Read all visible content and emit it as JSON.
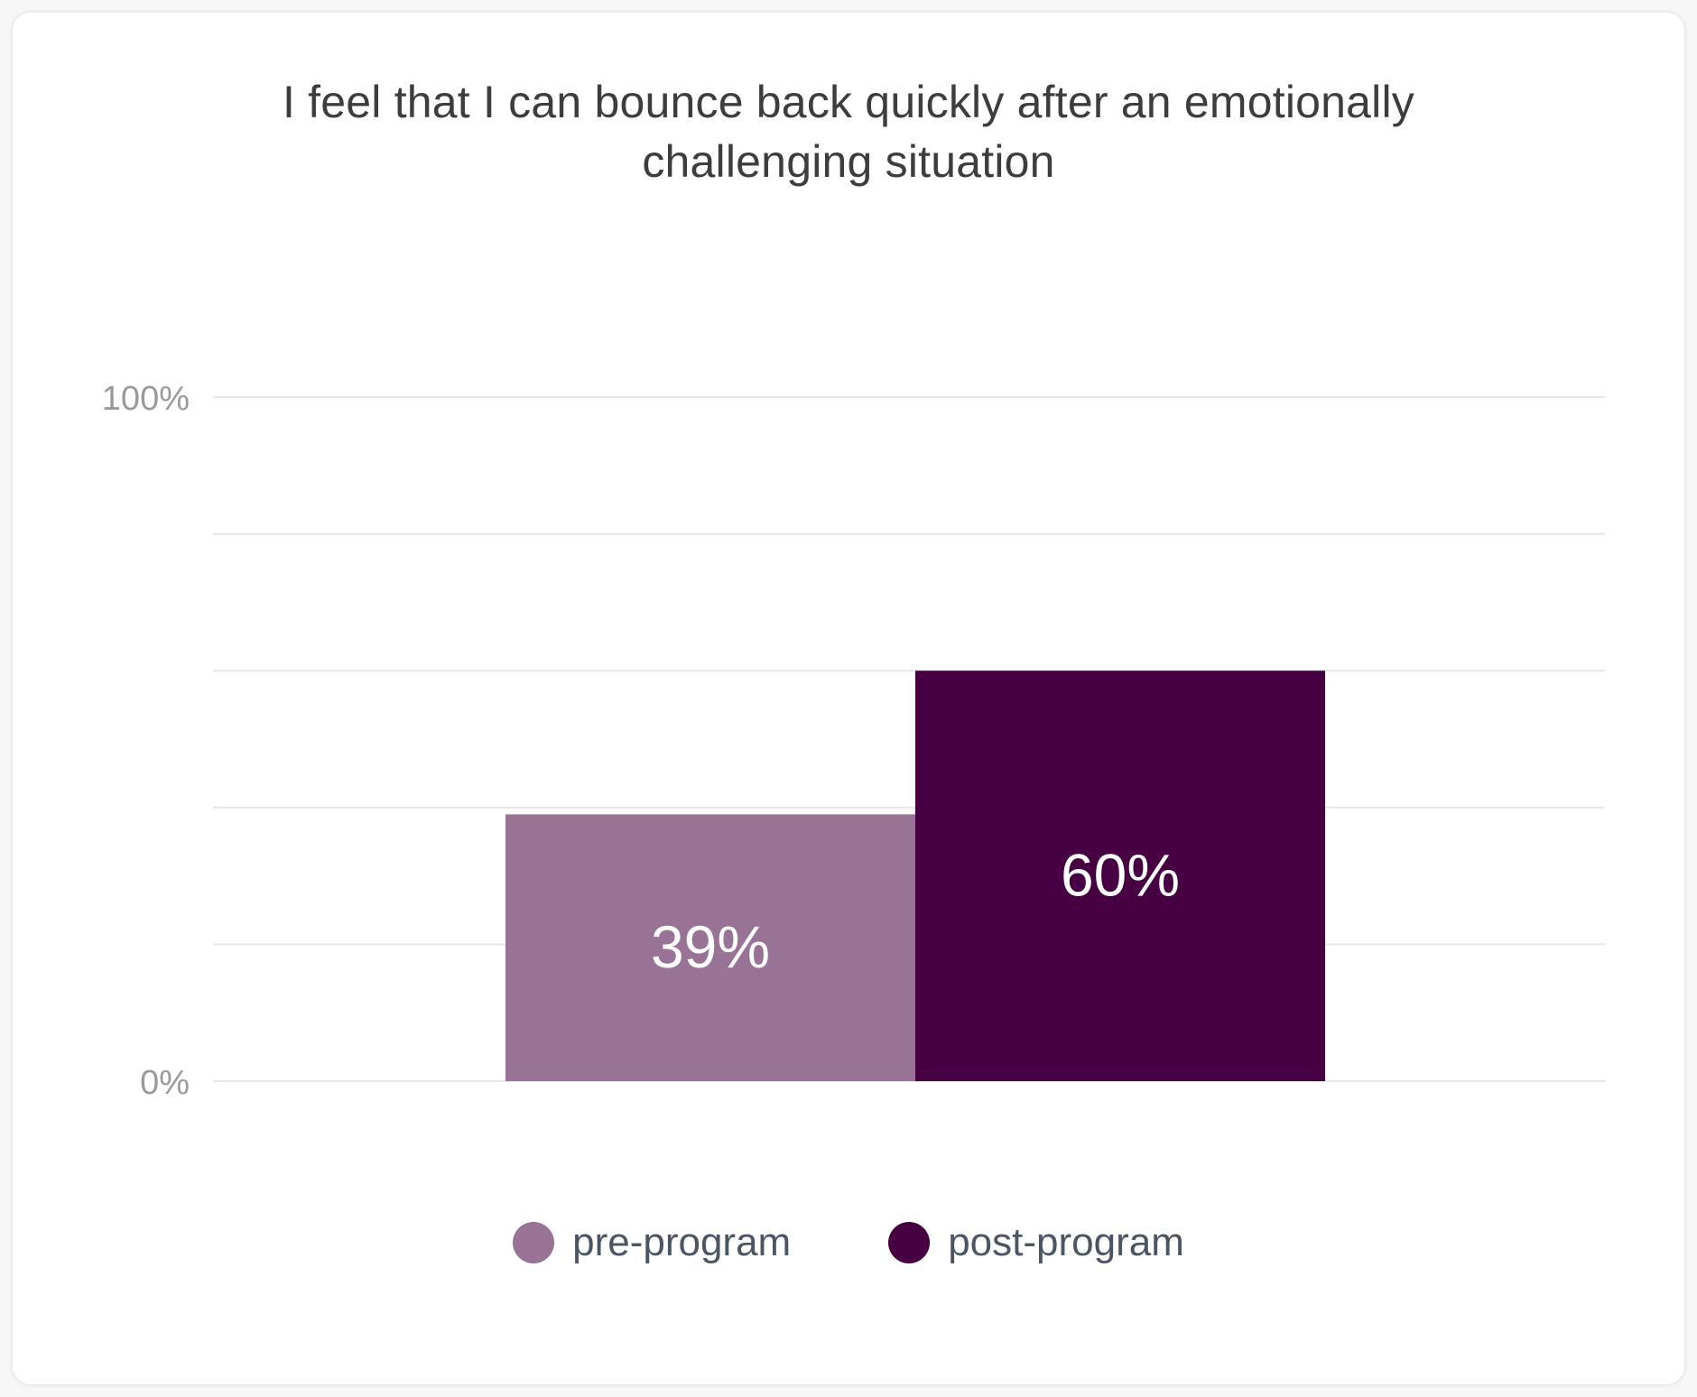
{
  "chart_data": {
    "type": "bar",
    "title_lines": [
      "I feel that I can bounce back quickly after an emotionally",
      "challenging situation"
    ],
    "categories": [
      "pre-program",
      "post-program"
    ],
    "values": [
      39,
      60
    ],
    "data_labels": [
      "39%",
      "60%"
    ],
    "colors": [
      "#987396",
      "#470042"
    ],
    "ylim": [
      0,
      100
    ],
    "y_tick_labels": [
      {
        "value": 100,
        "label": "100%"
      },
      {
        "value": 0,
        "label": "0%"
      }
    ],
    "gridline_values": [
      0,
      20,
      40,
      60,
      80,
      100
    ],
    "grid": true,
    "legend": {
      "placement": "bottom-center",
      "items": [
        {
          "label": "pre-program",
          "color": "#987396"
        },
        {
          "label": "post-program",
          "color": "#470042"
        }
      ]
    }
  }
}
